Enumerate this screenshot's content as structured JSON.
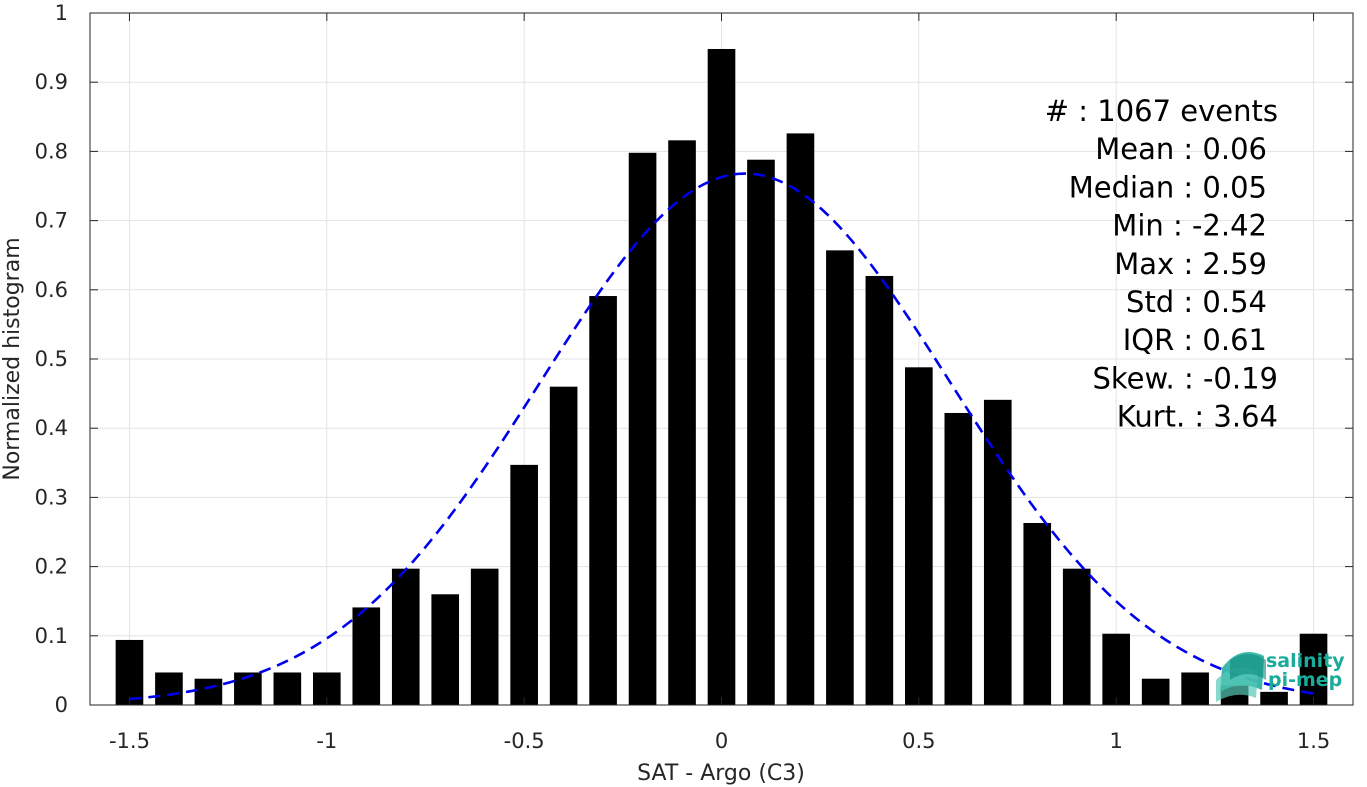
{
  "chart_data": {
    "type": "bar",
    "xlabel": "SAT - Argo (C3)",
    "ylabel": "Normalized histogram",
    "xlim": [
      -1.6,
      1.6
    ],
    "ylim": [
      0,
      1
    ],
    "x_ticks": [
      "-1.5",
      "-1",
      "-0.5",
      "0",
      "0.5",
      "1",
      "1.5"
    ],
    "y_ticks": [
      "0",
      "0.1",
      "0.2",
      "0.3",
      "0.4",
      "0.5",
      "0.6",
      "0.7",
      "0.8",
      "0.9",
      "1"
    ],
    "grid": true,
    "x": [
      -1.5,
      -1.4,
      -1.3,
      -1.2,
      -1.1,
      -1.0,
      -0.9,
      -0.8,
      -0.7,
      -0.6,
      -0.5,
      -0.4,
      -0.3,
      -0.2,
      -0.1,
      0.0,
      0.1,
      0.2,
      0.3,
      0.4,
      0.5,
      0.6,
      0.7,
      0.8,
      0.9,
      1.0,
      1.1,
      1.2,
      1.3,
      1.4,
      1.5
    ],
    "values": [
      0.094,
      0.047,
      0.038,
      0.047,
      0.047,
      0.047,
      0.141,
      0.197,
      0.16,
      0.197,
      0.347,
      0.46,
      0.591,
      0.798,
      0.816,
      0.948,
      0.788,
      0.826,
      0.657,
      0.62,
      0.488,
      0.422,
      0.441,
      0.263,
      0.197,
      0.103,
      0.038,
      0.047,
      0.028,
      0.019,
      0.103
    ],
    "bar_color": "#000000",
    "fit_curve": {
      "type": "gaussian",
      "style": "dashed",
      "color": "#0000ee",
      "mean": 0.06,
      "std": 0.52,
      "peak": 0.768,
      "x_range": [
        -1.5,
        1.5
      ]
    },
    "stats": [
      "#  : 1067 events",
      "Mean : 0.06",
      "Median : 0.05",
      "Min : -2.42",
      "Max : 2.59",
      "Std : 0.54",
      "IQR : 0.61",
      "Skew. : -0.19",
      "Kurt. : 3.64"
    ],
    "stats_placement": "top-right"
  },
  "logo": {
    "line1": "salinity",
    "line2": "pi-mep",
    "color": "#1aab9b"
  }
}
